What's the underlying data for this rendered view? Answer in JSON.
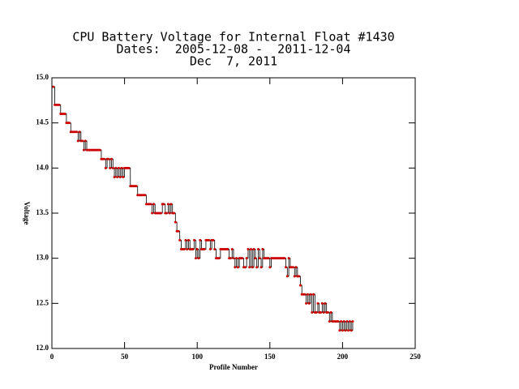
{
  "chart_data": {
    "type": "line",
    "title": "CPU Battery Voltage for Internal Float #1430",
    "subtitle": "Dates:  2005-12-08 -  2011-12-04",
    "date": "Dec  7, 2011",
    "x_label": "Profile Number",
    "y_label": "Voltage",
    "xlim": [
      0,
      250
    ],
    "ylim": [
      12,
      15
    ],
    "xticks": [
      0,
      50,
      100,
      150,
      200,
      250
    ],
    "yticks": [
      {
        "value": 12,
        "label": "12.0"
      },
      12.5,
      {
        "value": 13,
        "label": "13.0"
      },
      13.5,
      {
        "value": 14,
        "label": "14.0"
      },
      14.5,
      {
        "value": 15,
        "label": "15.0"
      }
    ],
    "series": [
      {
        "color": "#cc0000",
        "line_color": "#000000",
        "x": [
          1,
          2,
          3,
          4,
          5,
          6,
          7,
          8,
          9,
          10,
          11,
          12,
          13,
          14,
          15,
          16,
          17,
          18,
          19,
          20,
          21,
          22,
          23,
          24,
          25,
          26,
          27,
          28,
          29,
          30,
          31,
          32,
          33,
          34,
          35,
          36,
          37,
          38,
          39,
          40,
          41,
          42,
          43,
          44,
          45,
          46,
          47,
          48,
          49,
          50,
          51,
          52,
          53,
          54,
          55,
          56,
          57,
          58,
          59,
          60,
          61,
          62,
          63,
          64,
          65,
          66,
          67,
          68,
          69,
          70,
          71,
          72,
          73,
          74,
          75,
          76,
          77,
          78,
          79,
          80,
          81,
          82,
          83,
          84,
          85,
          86,
          87,
          88,
          89,
          90,
          91,
          92,
          93,
          94,
          95,
          96,
          97,
          98,
          99,
          100,
          101,
          102,
          103,
          104,
          105,
          106,
          107,
          108,
          109,
          110,
          111,
          112,
          113,
          114,
          115,
          116,
          117,
          118,
          119,
          120,
          121,
          122,
          123,
          124,
          125,
          126,
          127,
          128,
          129,
          130,
          131,
          132,
          133,
          134,
          135,
          136,
          137,
          138,
          139,
          140,
          141,
          142,
          143,
          144,
          145,
          146,
          147,
          148,
          149,
          150,
          151,
          152,
          153,
          154,
          155,
          156,
          157,
          158,
          159,
          160,
          161,
          162,
          163,
          164,
          165,
          166,
          167,
          168,
          169,
          170,
          171,
          172,
          173,
          174,
          175,
          176,
          177,
          178,
          179,
          180,
          181,
          182,
          183,
          184,
          185,
          186,
          187,
          188,
          189,
          190,
          191,
          192,
          193,
          194,
          195,
          196,
          197,
          198,
          199,
          200,
          201,
          202,
          203,
          204,
          205,
          206,
          207
        ],
        "values": [
          14.9,
          14.7,
          14.7,
          14.7,
          14.7,
          14.6,
          14.6,
          14.6,
          14.6,
          14.5,
          14.5,
          14.5,
          14.4,
          14.4,
          14.4,
          14.4,
          14.4,
          14.3,
          14.4,
          14.3,
          14.3,
          14.2,
          14.3,
          14.2,
          14.2,
          14.2,
          14.2,
          14.2,
          14.2,
          14.2,
          14.2,
          14.2,
          14.2,
          14.1,
          14.1,
          14.1,
          14.0,
          14.1,
          14.1,
          14.0,
          14.1,
          14.0,
          13.9,
          14.0,
          13.9,
          14.0,
          13.9,
          14.0,
          13.9,
          14.0,
          14.0,
          14.0,
          14.0,
          13.8,
          13.8,
          13.8,
          13.8,
          13.8,
          13.7,
          13.7,
          13.7,
          13.7,
          13.7,
          13.7,
          13.6,
          13.6,
          13.6,
          13.6,
          13.5,
          13.6,
          13.5,
          13.5,
          13.5,
          13.5,
          13.5,
          13.6,
          13.6,
          13.5,
          13.5,
          13.6,
          13.5,
          13.6,
          13.5,
          13.5,
          13.4,
          13.3,
          13.3,
          13.2,
          13.1,
          13.1,
          13.1,
          13.2,
          13.1,
          13.2,
          13.1,
          13.1,
          13.1,
          13.2,
          13.0,
          13.1,
          13.0,
          13.2,
          13.1,
          13.1,
          13.1,
          13.2,
          13.2,
          13.2,
          13.1,
          13.2,
          13.2,
          13.1,
          13.0,
          13.0,
          13.0,
          13.1,
          13.1,
          13.1,
          13.1,
          13.1,
          13.1,
          13.0,
          13.0,
          13.1,
          13.0,
          12.9,
          13.0,
          12.9,
          13.0,
          13.0,
          13.0,
          12.9,
          12.9,
          13.0,
          13.1,
          12.9,
          13.1,
          12.9,
          13.1,
          13.0,
          12.9,
          13.1,
          13.0,
          12.9,
          13.1,
          13.0,
          13.0,
          13.0,
          13.0,
          12.9,
          13.0,
          13.0,
          13.0,
          13.0,
          13.0,
          13.0,
          13.0,
          13.0,
          13.0,
          13.0,
          12.9,
          12.8,
          13.0,
          12.9,
          12.9,
          12.9,
          12.8,
          12.9,
          12.8,
          12.8,
          12.7,
          12.6,
          12.6,
          12.6,
          12.5,
          12.6,
          12.5,
          12.6,
          12.4,
          12.6,
          12.4,
          12.4,
          12.5,
          12.4,
          12.4,
          12.5,
          12.4,
          12.5,
          12.4,
          12.4,
          12.3,
          12.4,
          12.3,
          12.3,
          12.3,
          12.3,
          12.3,
          12.2,
          12.3,
          12.2,
          12.3,
          12.2,
          12.3,
          12.2,
          12.3,
          12.2,
          12.3
        ]
      }
    ]
  }
}
